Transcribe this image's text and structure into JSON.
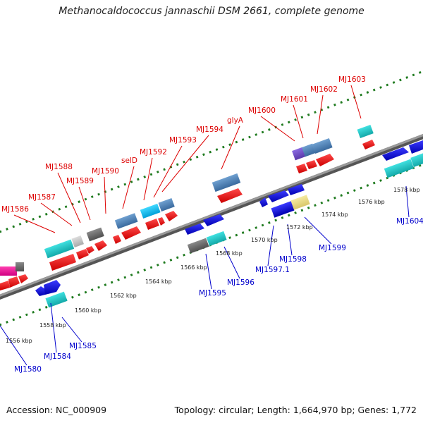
{
  "title": "Methanocaldococcus jannaschii DSM 2661, complete genome",
  "footer": {
    "accession": "Accession: NC_000909",
    "summary": "Topology: circular; Length: 1,664,970 bp; Genes: 1,772"
  },
  "colors": {
    "backbone": "#7a7a7a",
    "tick": "#1e7a1e",
    "top_label": "#dd0000",
    "bottom_label": "#0000cc",
    "scale_label": "#222222"
  },
  "scale_ticks": [
    "1556 kbp",
    "1558 kbp",
    "1560 kbp",
    "1562 kbp",
    "1564 kbp",
    "1566 kbp",
    "1568 kbp",
    "1570 kbp",
    "1572 kbp",
    "1574 kbp",
    "1576 kbp",
    "1578 kbp"
  ],
  "top_gene_labels": [
    "MJ1586",
    "MJ1587",
    "MJ1588",
    "MJ1589",
    "MJ1590",
    "selD",
    "MJ1592",
    "MJ1593",
    "MJ1594",
    "glyA",
    "MJ1600",
    "MJ1601",
    "MJ1602",
    "MJ1603"
  ],
  "bottom_gene_labels": [
    "MJ1580",
    "MJ1584",
    "MJ1585",
    "MJ1595",
    "MJ1596",
    "MJ1597.1",
    "MJ1598",
    "MJ1599",
    "MJ1604"
  ]
}
